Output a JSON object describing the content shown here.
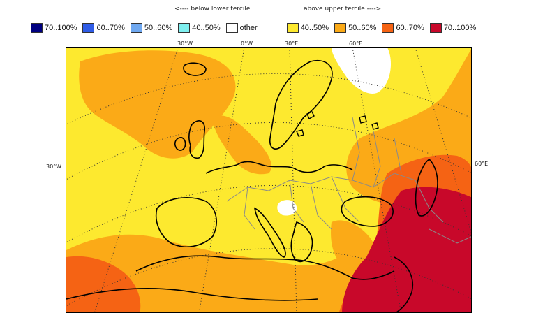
{
  "legend": {
    "below_label": "<---- below lower tercile",
    "above_label": "above upper tercile ---->",
    "items": [
      {
        "label": "70..100%",
        "color": "#000080"
      },
      {
        "label": "60..70%",
        "color": "#2f5ce6"
      },
      {
        "label": "50..60%",
        "color": "#6fa8f0"
      },
      {
        "label": "40..50%",
        "color": "#7ff0f0"
      },
      {
        "label": "other",
        "color": "#ffffff"
      },
      {
        "label": "40..50%",
        "color": "#fde92f"
      },
      {
        "label": "50..60%",
        "color": "#fbaa17"
      },
      {
        "label": "60..70%",
        "color": "#f56314"
      },
      {
        "label": "70..100%",
        "color": "#c8082a"
      }
    ]
  },
  "map": {
    "lon_labels": [
      "30°W",
      "0°W",
      "30°E",
      "60°E"
    ],
    "left_label": "30°W",
    "right_label": "60°E",
    "colors": {
      "yellow": "#fde92f",
      "orange": "#fbaa17",
      "red_orange": "#f56314",
      "red": "#c8082a",
      "white": "#ffffff"
    }
  }
}
